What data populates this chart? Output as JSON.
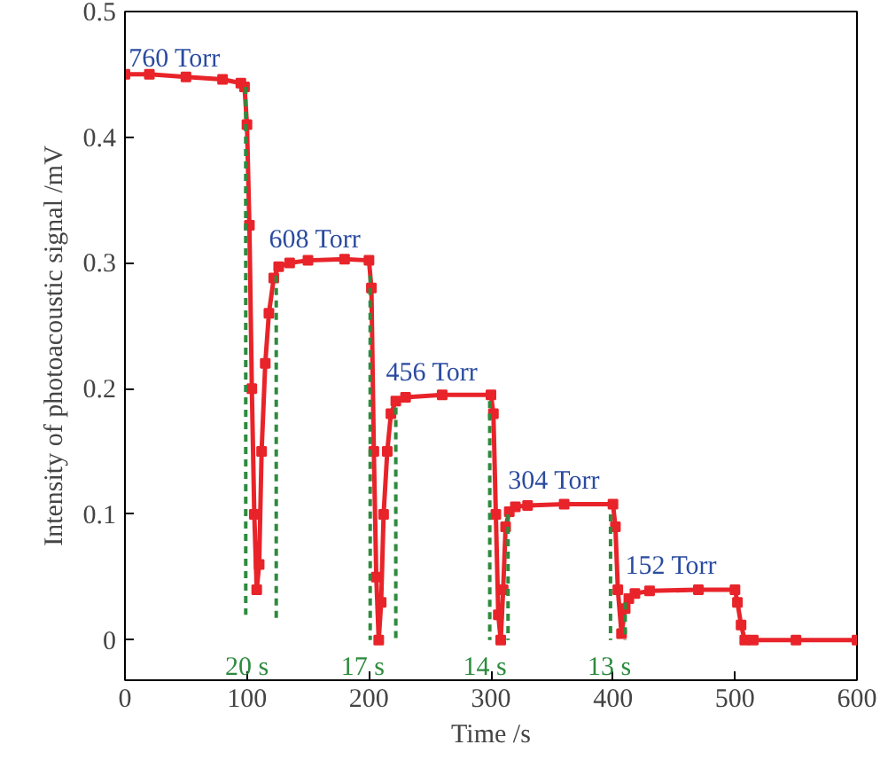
{
  "chart_data": {
    "type": "line",
    "xlabel": "Time /s",
    "ylabel": "Intensity of photoacoustic signal /mV",
    "xlim": [
      0,
      600
    ],
    "ylim": [
      -0.032,
      0.5
    ],
    "xticks": [
      0,
      100,
      200,
      300,
      400,
      500,
      600
    ],
    "yticks": [
      0,
      0.1,
      0.2,
      0.3,
      0.4,
      0.5
    ],
    "grid": false,
    "marker": "square",
    "series": [
      {
        "color": "#e8242a",
        "x": [
          0,
          20,
          50,
          80,
          95,
          98,
          100,
          102,
          104,
          106,
          108,
          110,
          112,
          115,
          118,
          122,
          126,
          135,
          150,
          180,
          200,
          202,
          204,
          206,
          208,
          210,
          212,
          215,
          218,
          222,
          230,
          260,
          300,
          302,
          304,
          306,
          308,
          310,
          312,
          315,
          320,
          330,
          360,
          400,
          402,
          404,
          407,
          410,
          413,
          418,
          430,
          470,
          500,
          502,
          505,
          508,
          515,
          550,
          600
        ],
        "values": [
          0.45,
          0.45,
          0.448,
          0.446,
          0.443,
          0.44,
          0.41,
          0.33,
          0.2,
          0.1,
          0.04,
          0.06,
          0.15,
          0.22,
          0.26,
          0.288,
          0.297,
          0.3,
          0.302,
          0.303,
          0.302,
          0.28,
          0.15,
          0.05,
          0.0,
          0.03,
          0.1,
          0.15,
          0.18,
          0.19,
          0.193,
          0.195,
          0.195,
          0.18,
          0.1,
          0.02,
          0.0,
          0.04,
          0.09,
          0.102,
          0.106,
          0.107,
          0.108,
          0.108,
          0.09,
          0.04,
          0.005,
          0.025,
          0.033,
          0.037,
          0.039,
          0.04,
          0.04,
          0.03,
          0.012,
          0.0,
          0.0,
          0.0,
          0.0
        ]
      },
      {
        "color": "#2e8b3e",
        "type": "line",
        "line_style": "dashed",
        "marker": "none",
        "x": [
          99,
          99
        ],
        "values": [
          0.44,
          0.02
        ]
      },
      {
        "color": "#2e8b3e",
        "type": "line",
        "line_style": "dashed",
        "marker": "none",
        "x": [
          124,
          124
        ],
        "values": [
          0.29,
          0.015
        ]
      },
      {
        "color": "#2e8b3e",
        "type": "line",
        "line_style": "dashed",
        "marker": "none",
        "x": [
          201,
          201
        ],
        "values": [
          0.29,
          0.0
        ]
      },
      {
        "color": "#2e8b3e",
        "type": "line",
        "line_style": "dashed",
        "marker": "none",
        "x": [
          222,
          222
        ],
        "values": [
          0.185,
          0.0
        ]
      },
      {
        "color": "#2e8b3e",
        "type": "line",
        "line_style": "dashed",
        "marker": "none",
        "x": [
          299,
          299
        ],
        "values": [
          0.19,
          0.0
        ]
      },
      {
        "color": "#2e8b3e",
        "type": "line",
        "line_style": "dashed",
        "marker": "none",
        "x": [
          314,
          314
        ],
        "values": [
          0.1,
          0.0
        ]
      },
      {
        "color": "#2e8b3e",
        "type": "line",
        "line_style": "dashed",
        "marker": "none",
        "x": [
          398,
          398
        ],
        "values": [
          0.1,
          0.0
        ]
      },
      {
        "color": "#2e8b3e",
        "type": "line",
        "line_style": "dashed",
        "marker": "none",
        "x": [
          410,
          410
        ],
        "values": [
          0.03,
          0.0
        ]
      }
    ],
    "annotations": [
      "760 Torr",
      "608 Torr",
      "456 Torr",
      "304 Torr",
      "152 Torr",
      "20 s",
      "17 s",
      "14 s",
      "13 s"
    ]
  }
}
